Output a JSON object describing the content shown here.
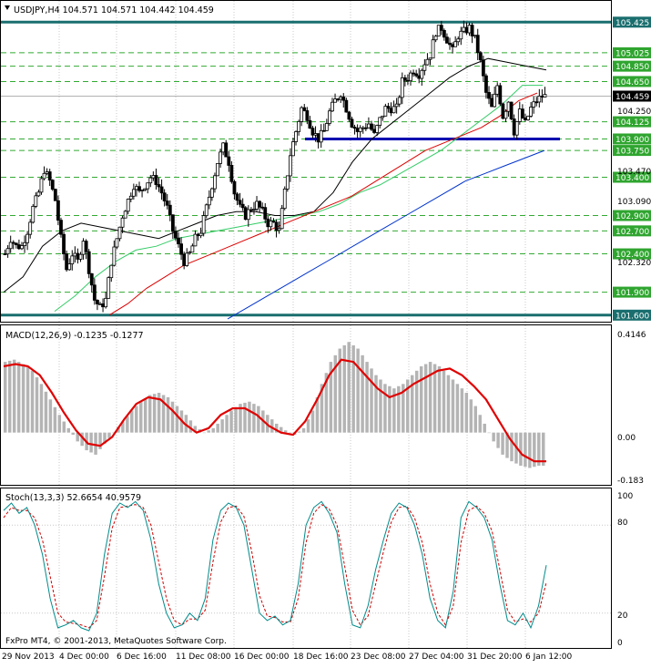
{
  "window": {
    "symbol_header": "USDJPY,H4  104.571 104.571 104.442 104.459",
    "watermark": "FxPro MT4, © 2001-2013, MetaQuotes Software Corp."
  },
  "colors": {
    "background": "#ffffff",
    "grid": "#c8c8c8",
    "candle": "#000000",
    "ma_fast": "#000000",
    "ma_green": "#33cc66",
    "ma_red": "#dd0000",
    "ma_blue": "#0033cc",
    "support_line": "#0000b0",
    "boundary_line": "#1a6e6e",
    "level_line": "#33aa33",
    "macd_hist": "#b4b4b4",
    "macd_signal": "#e00000",
    "stoch_main": "#008b8b",
    "stoch_signal": "#d00000",
    "label_green_bg": "#2fa52f",
    "label_teal_bg": "#1a6e6e",
    "label_current_bg": "#000000"
  },
  "price_panel": {
    "tick_labels": [
      "104.250",
      "103.470",
      "103.090",
      "102.320"
    ],
    "boundary_levels": [
      {
        "value": 105.425,
        "label": "105.425"
      },
      {
        "value": 101.6,
        "label": "101.600"
      }
    ],
    "support_level": {
      "value": 103.9
    },
    "levels": [
      {
        "value": 105.025,
        "label": "105.025"
      },
      {
        "value": 104.85,
        "label": "104.850"
      },
      {
        "value": 104.65,
        "label": "104.650"
      },
      {
        "value": 104.125,
        "label": "104.125"
      },
      {
        "value": 103.9,
        "label": "103.900"
      },
      {
        "value": 103.75,
        "label": "103.750"
      },
      {
        "value": 103.4,
        "label": "103.400"
      },
      {
        "value": 102.9,
        "label": "102.900"
      },
      {
        "value": 102.7,
        "label": "102.700"
      },
      {
        "value": 102.4,
        "label": "102.400"
      },
      {
        "value": 101.9,
        "label": "101.900"
      }
    ],
    "current_price": {
      "value": 104.459,
      "label": "104.459"
    }
  },
  "macd_panel": {
    "title": "MACD(12,26,9) -0.1235 -0.1277",
    "tick_labels": [
      "0.4146",
      "0.00",
      "-0.183"
    ]
  },
  "stoch_panel": {
    "title": "Stoch(13,3,3) 52.6654 40.9579",
    "tick_labels": [
      "100",
      "80",
      "20",
      "0"
    ]
  },
  "time_axis": {
    "labels": [
      "29 Nov 2013",
      "4 Dec 00:00",
      "6 Dec 16:00",
      "11 Dec 08:00",
      "16 Dec 00:00",
      "18 Dec 16:00",
      "23 Dec 08:00",
      "27 Dec 04:00",
      "31 Dec 20:00",
      "6 Jan 12:00"
    ]
  },
  "chart_data": {
    "type": "candlestick",
    "symbol": "USDJPY",
    "timeframe": "H4",
    "ylim": [
      101.55,
      105.5
    ],
    "ohlc_path": [
      102.4,
      102.6,
      102.5,
      102.5,
      102.7,
      103.0,
      103.2,
      103.5,
      103.35,
      103.1,
      102.6,
      102.2,
      102.4,
      102.3,
      102.6,
      102.2,
      101.8,
      101.7,
      101.8,
      102.3,
      102.6,
      102.9,
      103.1,
      103.3,
      103.2,
      103.3,
      103.4,
      103.35,
      103.2,
      103.0,
      102.7,
      102.5,
      102.3,
      102.4,
      102.6,
      102.7,
      103.0,
      103.3,
      103.6,
      103.8,
      103.6,
      103.2,
      103.0,
      102.9,
      103.0,
      103.05,
      102.95,
      102.8,
      102.8,
      102.7,
      103.2,
      103.7,
      104.0,
      104.3,
      104.2,
      104.0,
      103.9,
      104.0,
      104.25,
      104.4,
      104.5,
      104.3,
      104.1,
      104.0,
      104.05,
      104.1,
      103.95,
      104.15,
      104.3,
      104.3,
      104.3,
      104.65,
      104.7,
      104.8,
      104.75,
      104.9,
      105.0,
      105.3,
      105.35,
      105.2,
      105.05,
      105.25,
      105.3,
      105.35,
      105.2,
      104.9,
      104.5,
      104.3,
      104.6,
      104.2,
      104.4,
      104.0,
      104.25,
      104.1,
      104.3,
      104.4,
      104.459
    ],
    "moving_averages": [
      {
        "color": "#000000",
        "points": [
          101.9,
          102.1,
          102.5,
          102.7,
          102.8,
          102.75,
          102.7,
          102.65,
          102.6,
          102.7,
          102.8,
          102.9,
          102.95,
          102.95,
          102.9,
          102.9,
          102.95,
          103.2,
          103.6,
          103.9,
          104.1,
          104.3,
          104.5,
          104.7,
          104.85,
          104.95,
          104.9,
          104.85,
          104.8
        ]
      },
      {
        "color": "#33cc66",
        "points": [
          101.65,
          101.85,
          102.1,
          102.3,
          102.45,
          102.5,
          102.6,
          102.65,
          102.7,
          102.75,
          102.8,
          102.85,
          102.9,
          102.95,
          103.05,
          103.2,
          103.3,
          103.45,
          103.6,
          103.75,
          103.95,
          104.15,
          104.35,
          104.6,
          104.6
        ]
      },
      {
        "color": "#dd0000",
        "points": [
          101.6,
          101.75,
          101.95,
          102.1,
          102.25,
          102.35,
          102.45,
          102.55,
          102.65,
          102.75,
          102.85,
          102.95,
          103.05,
          103.15,
          103.3,
          103.45,
          103.6,
          103.75,
          103.85,
          103.95,
          104.05,
          104.2,
          104.4,
          104.5
        ]
      },
      {
        "color": "#0033cc",
        "points": [
          101.55,
          101.7,
          101.85,
          102.0,
          102.15,
          102.3,
          102.45,
          102.6,
          102.75,
          102.9,
          103.05,
          103.2,
          103.35,
          103.45,
          103.55,
          103.65,
          103.75
        ]
      }
    ],
    "macd": {
      "ylim": [
        -0.22,
        0.44
      ],
      "histogram_shape": [
        0.32,
        0.33,
        0.31,
        0.28,
        0.22,
        0.15,
        0.08,
        0.02,
        -0.04,
        -0.08,
        -0.1,
        -0.05,
        0.0,
        0.05,
        0.1,
        0.14,
        0.17,
        0.18,
        0.16,
        0.12,
        0.08,
        0.03,
        0.0,
        0.02,
        0.06,
        0.1,
        0.13,
        0.14,
        0.12,
        0.08,
        0.04,
        0.01,
        -0.01,
        0.02,
        0.1,
        0.22,
        0.32,
        0.38,
        0.41,
        0.38,
        0.32,
        0.26,
        0.22,
        0.2,
        0.22,
        0.26,
        0.3,
        0.32,
        0.3,
        0.26,
        0.22,
        0.18,
        0.12,
        0.04,
        -0.04,
        -0.1,
        -0.13,
        -0.15,
        -0.16,
        -0.15
      ],
      "signal_shape": [
        0.3,
        0.31,
        0.3,
        0.26,
        0.18,
        0.09,
        0.01,
        -0.05,
        -0.06,
        -0.02,
        0.06,
        0.13,
        0.16,
        0.15,
        0.1,
        0.04,
        0.0,
        0.02,
        0.08,
        0.11,
        0.11,
        0.08,
        0.03,
        0.0,
        -0.01,
        0.05,
        0.15,
        0.26,
        0.33,
        0.32,
        0.26,
        0.2,
        0.16,
        0.18,
        0.22,
        0.25,
        0.28,
        0.29,
        0.26,
        0.21,
        0.15,
        0.06,
        -0.03,
        -0.1,
        -0.13,
        -0.13
      ]
    },
    "stochastic": {
      "ylim": [
        0,
        100
      ],
      "main_shape": [
        90,
        95,
        88,
        92,
        80,
        60,
        30,
        10,
        12,
        15,
        10,
        8,
        20,
        60,
        88,
        95,
        92,
        96,
        90,
        70,
        40,
        20,
        10,
        12,
        20,
        15,
        30,
        70,
        90,
        95,
        92,
        80,
        50,
        20,
        15,
        18,
        12,
        15,
        40,
        80,
        92,
        96,
        88,
        75,
        40,
        12,
        10,
        25,
        50,
        70,
        88,
        95,
        92,
        80,
        60,
        30,
        15,
        10,
        35,
        85,
        96,
        92,
        85,
        70,
        40,
        15,
        12,
        20,
        10,
        25,
        52.67
      ],
      "signal_shape": [
        85,
        92,
        90,
        90,
        85,
        70,
        45,
        20,
        14,
        13,
        12,
        10,
        15,
        45,
        78,
        92,
        93,
        94,
        92,
        80,
        55,
        30,
        15,
        12,
        16,
        16,
        22,
        55,
        82,
        92,
        93,
        86,
        62,
        32,
        18,
        17,
        14,
        14,
        30,
        68,
        88,
        94,
        91,
        80,
        52,
        22,
        12,
        18,
        40,
        62,
        82,
        92,
        93,
        85,
        68,
        40,
        20,
        12,
        25,
        68,
        90,
        93,
        88,
        76,
        50,
        22,
        14,
        16,
        14,
        20,
        40.96
      ]
    }
  }
}
